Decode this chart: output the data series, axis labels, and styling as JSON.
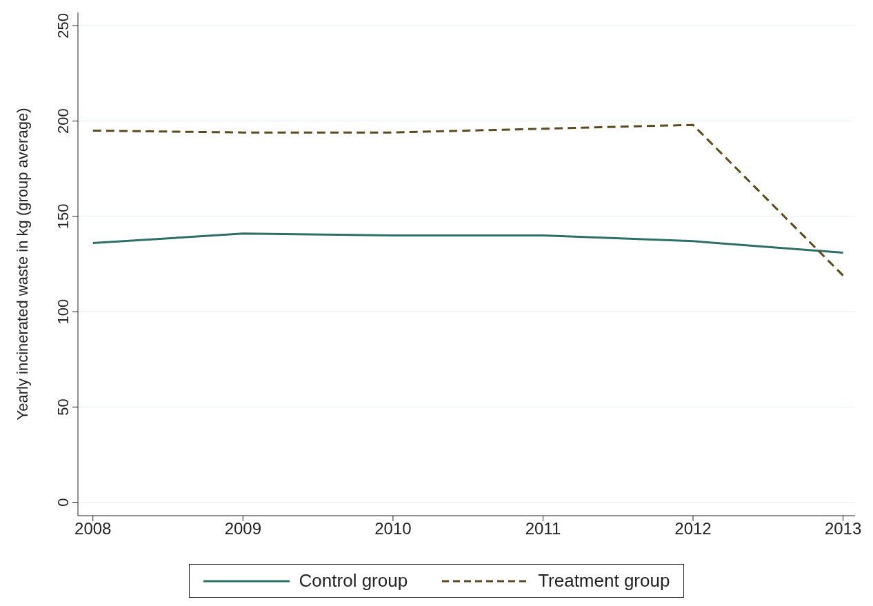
{
  "chart_data": {
    "type": "line",
    "ylabel": "Yearly incinerated waste in kg (group average)",
    "x": [
      2008,
      2009,
      2010,
      2011,
      2012,
      2013
    ],
    "series": [
      {
        "name": "Control group",
        "color": "#2e6e66",
        "line_style": "solid",
        "values": [
          136,
          141,
          140,
          140,
          137,
          131
        ]
      },
      {
        "name": "Treatment group",
        "color": "#5c4a1e",
        "line_style": "dashed",
        "values": [
          195,
          194,
          194,
          196,
          198,
          119
        ]
      }
    ],
    "xlim": [
      2007.9,
      2013.08
    ],
    "xticks": [
      2008,
      2009,
      2010,
      2011,
      2012,
      2013
    ],
    "ylim": [
      -7,
      257
    ],
    "yticks": [
      0,
      50,
      100,
      150,
      200,
      250
    ],
    "grid": "y",
    "legend": "bottom",
    "marker": "none"
  }
}
